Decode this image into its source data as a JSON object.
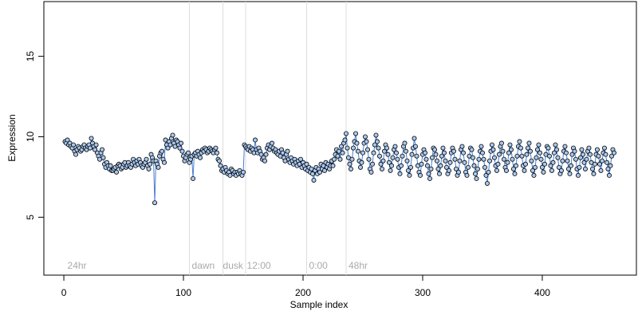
{
  "chart_data": {
    "type": "line",
    "x_label": "Sample index",
    "y_label": "Expression",
    "xlim": [
      -16.7,
      478.7
    ],
    "ylim": [
      1.4,
      18.4
    ],
    "xticks": [
      0,
      100,
      200,
      300,
      400
    ],
    "yticks": [
      5,
      10,
      15
    ],
    "line_color": "#4a7fd4",
    "point_fill": "#a9c8ef",
    "vline_color": "#dddddd",
    "vlines": [
      105,
      133,
      152,
      203,
      236
    ],
    "annotations": [
      {
        "text": "24hr",
        "x": 3
      },
      {
        "text": "dawn",
        "x": 107
      },
      {
        "text": "dusk",
        "x": 133
      },
      {
        "text": "12:00",
        "x": 153
      },
      {
        "text": "0:00",
        "x": 205
      },
      {
        "text": "48hr",
        "x": 238
      }
    ],
    "x": [
      1,
      2,
      3,
      4,
      5,
      6,
      7,
      8,
      9,
      10,
      11,
      12,
      13,
      14,
      15,
      16,
      17,
      18,
      19,
      20,
      21,
      22,
      23,
      24,
      25,
      26,
      27,
      28,
      29,
      30,
      31,
      32,
      33,
      34,
      35,
      36,
      37,
      38,
      39,
      40,
      41,
      42,
      43,
      44,
      45,
      46,
      47,
      48,
      49,
      50,
      51,
      52,
      53,
      54,
      55,
      56,
      57,
      58,
      59,
      60,
      61,
      62,
      63,
      64,
      65,
      66,
      67,
      68,
      69,
      70,
      71,
      72,
      73,
      74,
      75,
      76,
      77,
      78,
      79,
      80,
      81,
      82,
      83,
      84,
      85,
      86,
      87,
      88,
      89,
      90,
      91,
      92,
      93,
      94,
      95,
      96,
      97,
      98,
      99,
      100,
      101,
      102,
      103,
      104,
      105,
      106,
      107,
      108,
      109,
      110,
      111,
      112,
      113,
      114,
      115,
      116,
      117,
      118,
      119,
      120,
      121,
      122,
      123,
      124,
      125,
      126,
      127,
      128,
      129,
      130,
      131,
      132,
      133,
      134,
      135,
      136,
      137,
      138,
      139,
      140,
      141,
      142,
      143,
      144,
      145,
      146,
      147,
      148,
      149,
      150,
      151,
      152,
      153,
      154,
      155,
      156,
      157,
      158,
      159,
      160,
      161,
      162,
      163,
      164,
      165,
      166,
      167,
      168,
      169,
      170,
      171,
      172,
      173,
      174,
      175,
      176,
      177,
      178,
      179,
      180,
      181,
      182,
      183,
      184,
      185,
      186,
      187,
      188,
      189,
      190,
      191,
      192,
      193,
      194,
      195,
      196,
      197,
      198,
      199,
      200,
      201,
      202,
      203,
      204,
      205,
      206,
      207,
      208,
      209,
      210,
      211,
      212,
      213,
      214,
      215,
      216,
      217,
      218,
      219,
      220,
      221,
      222,
      223,
      224,
      225,
      226,
      227,
      228,
      229,
      230,
      231,
      232,
      233,
      234,
      235,
      236,
      237,
      238,
      239,
      240,
      241,
      242,
      243,
      244,
      245,
      246,
      247,
      248,
      249,
      250,
      251,
      252,
      253,
      254,
      255,
      256,
      257,
      258,
      259,
      260,
      261,
      262,
      263,
      264,
      265,
      266,
      267,
      268,
      269,
      270,
      271,
      272,
      273,
      274,
      275,
      276,
      277,
      278,
      279,
      280,
      281,
      282,
      283,
      284,
      285,
      286,
      287,
      288,
      289,
      290,
      291,
      292,
      293,
      294,
      295,
      296,
      297,
      298,
      299,
      300,
      301,
      302,
      303,
      304,
      305,
      306,
      307,
      308,
      309,
      310,
      311,
      312,
      313,
      314,
      315,
      316,
      317,
      318,
      319,
      320,
      321,
      322,
      323,
      324,
      325,
      326,
      327,
      328,
      329,
      330,
      331,
      332,
      333,
      334,
      335,
      336,
      337,
      338,
      339,
      340,
      341,
      342,
      343,
      344,
      345,
      346,
      347,
      348,
      349,
      350,
      351,
      352,
      353,
      354,
      355,
      356,
      357,
      358,
      359,
      360,
      361,
      362,
      363,
      364,
      365,
      366,
      367,
      368,
      369,
      370,
      371,
      372,
      373,
      374,
      375,
      376,
      377,
      378,
      379,
      380,
      381,
      382,
      383,
      384,
      385,
      386,
      387,
      388,
      389,
      390,
      391,
      392,
      393,
      394,
      395,
      396,
      397,
      398,
      399,
      400,
      401,
      402,
      403,
      404,
      405,
      406,
      407,
      408,
      409,
      410,
      411,
      412,
      413,
      414,
      415,
      416,
      417,
      418,
      419,
      420,
      421,
      422,
      423,
      424,
      425,
      426,
      427,
      428,
      429,
      430,
      431,
      432,
      433,
      434,
      435,
      436,
      437,
      438,
      439,
      440,
      441,
      442,
      443,
      444,
      445,
      446,
      447,
      448,
      449,
      450,
      451,
      452,
      453,
      454,
      455,
      456,
      457,
      458,
      459,
      460
    ],
    "values": [
      9.7,
      9.6,
      9.8,
      9.5,
      9.6,
      9.4,
      9.3,
      9.5,
      9.1,
      8.9,
      9.2,
      9.4,
      9.3,
      9.1,
      9.2,
      9.4,
      9.5,
      9.3,
      9.2,
      9.4,
      9.5,
      9.3,
      9.9,
      9.6,
      9.4,
      9.2,
      9.5,
      9.0,
      8.8,
      8.6,
      9.0,
      9.2,
      8.7,
      8.3,
      8.1,
      8.4,
      8.2,
      8.0,
      8.2,
      7.9,
      7.9,
      8.0,
      8.1,
      7.8,
      8.2,
      8.3,
      8.2,
      8.0,
      8.1,
      8.3,
      8.4,
      8.1,
      8.2,
      8.4,
      8.2,
      8.1,
      8.3,
      8.6,
      8.4,
      8.2,
      8.5,
      8.3,
      8.6,
      8.4,
      8.2,
      8.1,
      8.3,
      8.4,
      8.6,
      8.2,
      8.0,
      8.3,
      8.9,
      8.7,
      8.5,
      5.9,
      8.5,
      8.3,
      8.1,
      8.8,
      9.0,
      9.1,
      8.6,
      8.4,
      9.8,
      9.5,
      9.3,
      9.7,
      9.5,
      9.9,
      10.1,
      9.6,
      9.4,
      9.8,
      9.7,
      9.5,
      9.3,
      9.6,
      9.1,
      8.8,
      8.5,
      8.7,
      8.9,
      9.0,
      8.4,
      8.6,
      8.8,
      7.4,
      8.9,
      9.0,
      8.8,
      9.1,
      8.9,
      8.7,
      9.0,
      9.2,
      9.1,
      9.3,
      9.2,
      9.0,
      9.1,
      9.3,
      9.2,
      9.1,
      9.0,
      9.2,
      9.3,
      9.0,
      8.6,
      8.5,
      8.2,
      7.9,
      8.0,
      7.8,
      8.1,
      7.9,
      7.7,
      7.8,
      7.6,
      8.0,
      7.9,
      7.7,
      7.8,
      7.6,
      7.8,
      7.7,
      7.9,
      7.7,
      7.6,
      7.8,
      9.5,
      9.4,
      9.3,
      9.2,
      9.4,
      9.1,
      9.3,
      9.2,
      9.0,
      9.8,
      9.2,
      9.0,
      9.3,
      9.1,
      8.9,
      8.6,
      8.7,
      8.5,
      8.9,
      9.3,
      9.5,
      9.2,
      9.4,
      9.6,
      9.3,
      9.1,
      9.2,
      9.0,
      8.9,
      9.1,
      8.8,
      9.2,
      9.0,
      8.7,
      8.5,
      8.9,
      9.1,
      8.6,
      8.4,
      8.7,
      8.5,
      8.3,
      8.6,
      8.4,
      8.2,
      8.5,
      8.3,
      8.6,
      8.1,
      8.4,
      8.2,
      8.0,
      8.3,
      7.9,
      8.1,
      7.8,
      8.0,
      7.7,
      7.3,
      7.9,
      8.1,
      7.7,
      8.0,
      7.8,
      8.3,
      8.0,
      8.2,
      7.9,
      8.4,
      8.1,
      8.3,
      8.0,
      8.2,
      8.5,
      8.2,
      8.6,
      8.9,
      9.2,
      8.8,
      9.1,
      8.6,
      9.4,
      9.0,
      9.6,
      9.8,
      10.2,
      9.3,
      8.7,
      8.3,
      8.0,
      8.6,
      9.3,
      9.7,
      10.2,
      9.6,
      9.1,
      8.5,
      8.1,
      8.4,
      9.0,
      9.6,
      10.0,
      9.7,
      9.2,
      8.6,
      8.0,
      7.8,
      8.3,
      9.0,
      9.5,
      10.1,
      9.7,
      9.3,
      8.8,
      8.3,
      8.0,
      8.5,
      9.1,
      9.5,
      9.3,
      8.9,
      8.4,
      7.9,
      8.2,
      8.7,
      9.2,
      9.4,
      9.0,
      8.6,
      8.1,
      7.7,
      8.2,
      8.8,
      9.4,
      9.6,
      9.1,
      8.5,
      7.9,
      7.6,
      8.1,
      8.9,
      9.3,
      9.9,
      9.4,
      8.8,
      8.2,
      7.8,
      7.6,
      8.3,
      8.9,
      9.2,
      9.0,
      8.6,
      8.2,
      7.7,
      7.4,
      8.0,
      8.7,
      9.3,
      9.2,
      8.9,
      8.5,
      8.0,
      7.7,
      8.2,
      8.8,
      9.3,
      9.0,
      8.5,
      8.1,
      7.7,
      7.9,
      8.4,
      9.0,
      9.3,
      9.1,
      8.6,
      8.0,
      7.6,
      7.8,
      8.5,
      9.2,
      9.4,
      9.0,
      8.4,
      7.8,
      7.6,
      8.1,
      8.8,
      9.3,
      9.2,
      8.7,
      8.2,
      7.7,
      7.4,
      8.0,
      8.6,
      9.1,
      9.4,
      9.0,
      8.6,
      8.1,
      7.6,
      7.1,
      7.8,
      8.5,
      9.1,
      9.5,
      9.2,
      8.7,
      8.2,
      7.9,
      8.3,
      8.9,
      9.4,
      9.6,
      9.1,
      8.6,
      8.1,
      7.9,
      8.4,
      9.0,
      9.5,
      9.2,
      8.6,
      8.0,
      7.7,
      8.2,
      8.8,
      9.4,
      9.7,
      9.3,
      8.8,
      8.2,
      7.9,
      8.3,
      8.9,
      9.3,
      9.6,
      9.1,
      8.5,
      7.9,
      7.6,
      8.1,
      8.7,
      9.2,
      9.5,
      9.0,
      8.6,
      8.1,
      7.8,
      8.3,
      8.9,
      9.4,
      9.3,
      8.8,
      8.2,
      7.9,
      8.4,
      9.0,
      9.5,
      9.2,
      8.7,
      8.1,
      7.7,
      7.9,
      8.5,
      9.1,
      9.4,
      9.0,
      8.5,
      8.0,
      7.7,
      8.2,
      8.9,
      9.3,
      9.1,
      8.6,
      8.0,
      7.6,
      8.1,
      8.7,
      9.2,
      8.9,
      8.4,
      8.0,
      8.6,
      9.1,
      9.3,
      8.9,
      8.4,
      8.0,
      7.7,
      8.3,
      8.9,
      9.2,
      8.8,
      8.3,
      7.9,
      8.5,
      9.0,
      9.3,
      8.9,
      8.4,
      8.0,
      7.6,
      8.2,
      8.8,
      9.2,
      9.0
    ]
  }
}
